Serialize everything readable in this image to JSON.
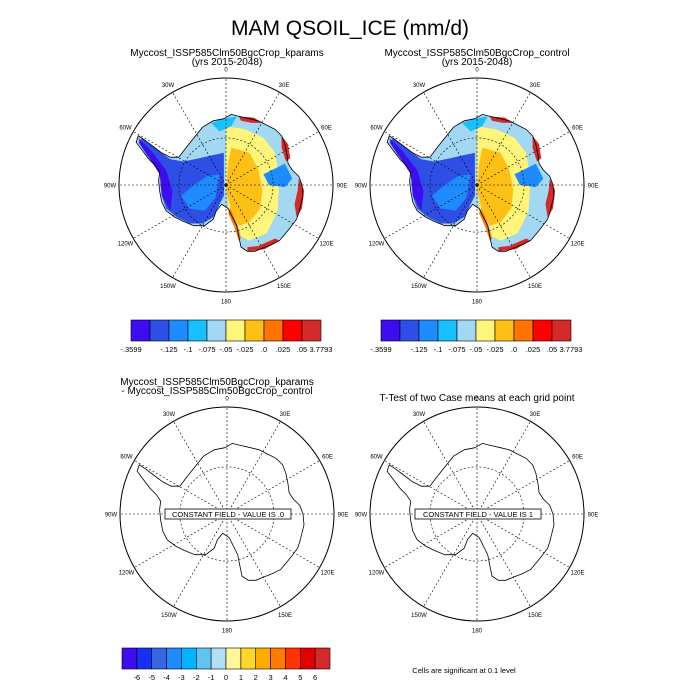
{
  "chart_data": {
    "type": "heatmap",
    "title": "MAM QSOIL_ICE (mm/d)",
    "panels": [
      {
        "id": "kparams",
        "title_line1": "Myccost_ISSP585Clm50BgcCrop_kparams",
        "title_line2": "(yrs 2015-2048)",
        "projection": "south-polar-stereographic",
        "colorbar": "levels_main",
        "regions": [
          {
            "name": "east-antarctic-plateau-core",
            "value_class": ".0"
          },
          {
            "name": "east-antarctic-interior",
            "value_class": "-.025"
          },
          {
            "name": "coastal-margin",
            "value_class": "-.05"
          },
          {
            "name": "west-antarctica",
            "value_class": "-.3599"
          },
          {
            "name": "east-coast-edge",
            "value_class": "3.7793"
          }
        ]
      },
      {
        "id": "control",
        "title_line1": "Myccost_ISSP585Clm50BgcCrop_control",
        "title_line2": "(yrs 2015-2048)",
        "projection": "south-polar-stereographic",
        "colorbar": "levels_main",
        "regions": [
          {
            "name": "east-antarctic-plateau-core",
            "value_class": ".0"
          },
          {
            "name": "east-antarctic-interior",
            "value_class": "-.025"
          },
          {
            "name": "coastal-margin",
            "value_class": "-.05"
          },
          {
            "name": "west-antarctica",
            "value_class": "-.3599"
          },
          {
            "name": "east-coast-edge",
            "value_class": "3.7793"
          }
        ]
      },
      {
        "id": "difference",
        "title_line1": "Myccost_ISSP585Clm50BgcCrop_kparams",
        "title_line2": "- Myccost_ISSP585Clm50BgcCrop_control",
        "projection": "south-polar-stereographic",
        "constant_label": "CONSTANT FIELD - VALUE IS .0",
        "colorbar": "levels_diff"
      },
      {
        "id": "ttest",
        "title_line1": "T-Test of two Case means at each grid point",
        "title_line2": "",
        "projection": "south-polar-stereographic",
        "constant_label": "CONSTANT FIELD - VALUE IS 1",
        "note": "Cells are significant at 0.1 level"
      }
    ],
    "lon_labels": [
      "0",
      "30E",
      "60E",
      "90E",
      "120E",
      "150E",
      "180",
      "150W",
      "120W",
      "90W",
      "60W",
      "30W"
    ],
    "levels_main": {
      "labels": [
        "-.3599",
        "",
        "-.125",
        "-.1",
        "-.075",
        "-.05",
        "-.025",
        ".0",
        ".025",
        ".05",
        "3.7793"
      ],
      "colors": [
        "#3d0df0",
        "#2e4fe6",
        "#1e8cff",
        "#18c0ff",
        "#a3d8f3",
        "#fff57a",
        "#ffc015",
        "#ff7400",
        "#ff0000",
        "#d42a2a"
      ]
    },
    "levels_diff": {
      "labels": [
        "-6",
        "-5",
        "-4",
        "-3",
        "-2",
        "-1",
        "0",
        "1",
        "2",
        "3",
        "4",
        "5",
        "6"
      ],
      "colors": [
        "#3d0df0",
        "#1531f5",
        "#3567e0",
        "#1e8cff",
        "#00b4ff",
        "#5fc4f2",
        "#b3dff4",
        "#fff799",
        "#ffd62a",
        "#ffab00",
        "#ff7b00",
        "#ff3300",
        "#e30000",
        "#d42a2a"
      ]
    }
  }
}
